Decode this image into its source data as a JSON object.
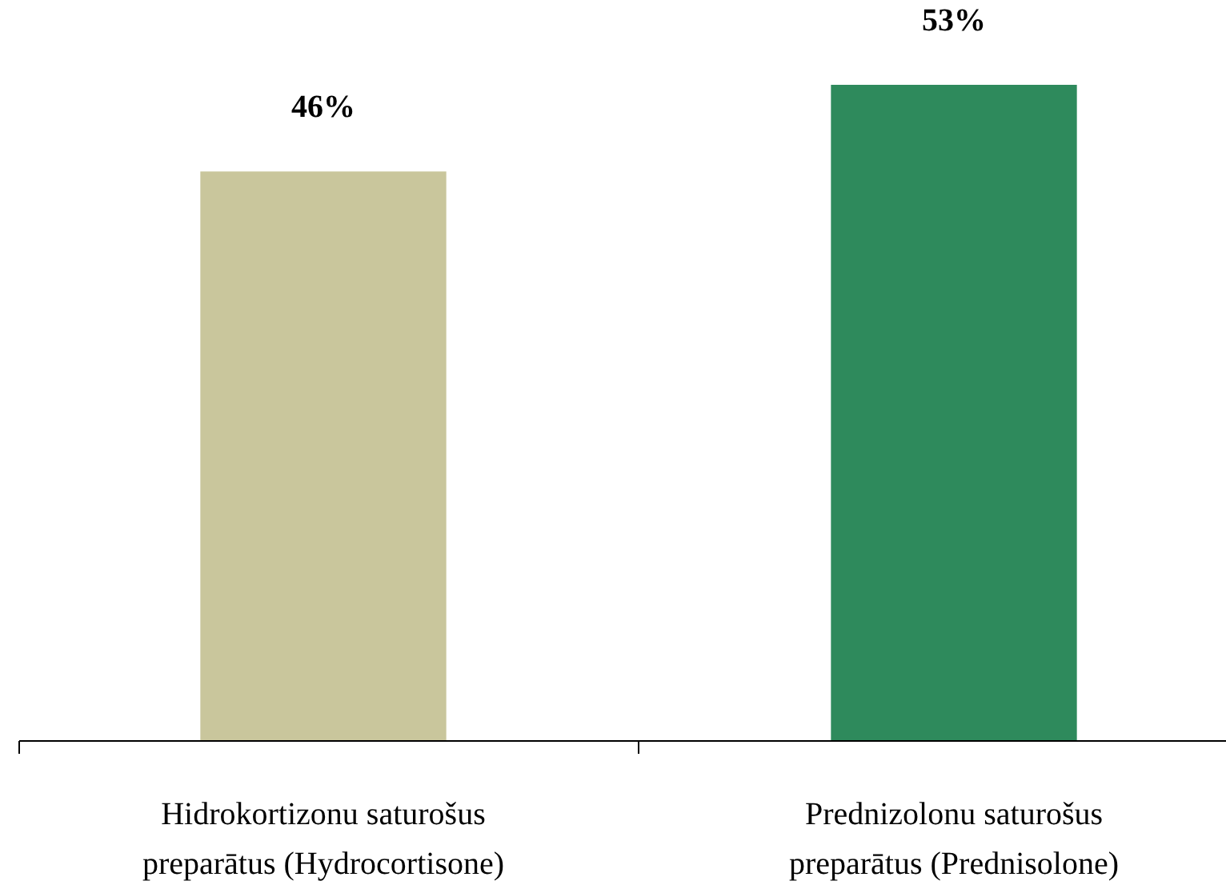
{
  "chart_data": {
    "type": "bar",
    "relative": false,
    "categories": [
      "Hidrokortizonu  saturošus preparātus (Hydrocortisone)",
      "Prednizolonu saturošus preparātus (Prednisolone)"
    ],
    "values": [
      46,
      53
    ],
    "colors": [
      "#c9c69c",
      "#2e8a5c"
    ],
    "value_labels": [
      "46%",
      "53%"
    ]
  }
}
